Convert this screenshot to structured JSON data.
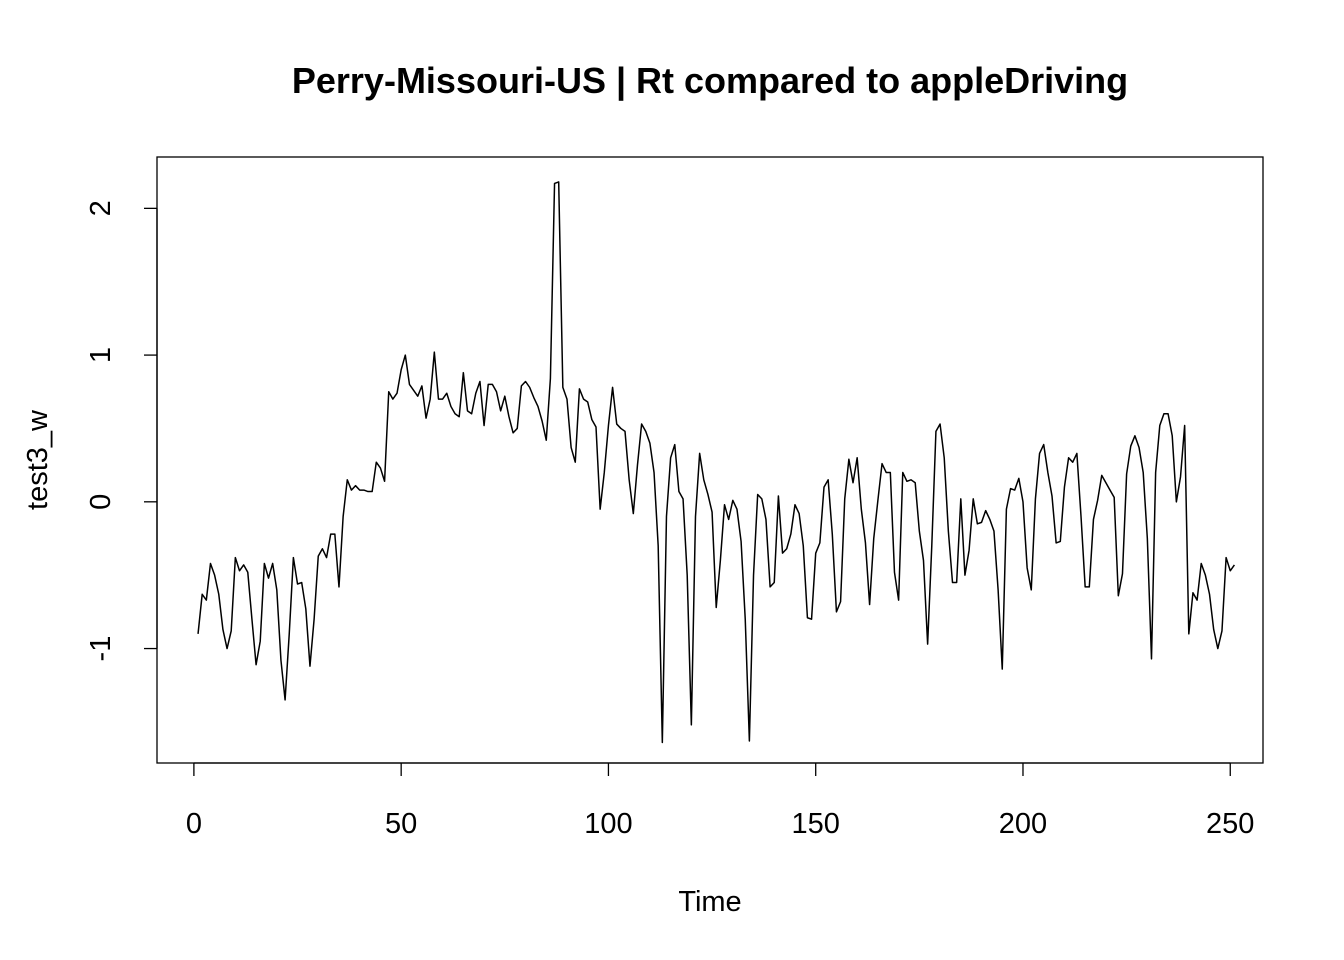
{
  "chart_data": {
    "type": "line",
    "title": "Perry-Missouri-US | Rt compared to appleDriving",
    "xlabel": "Time",
    "ylabel": "test3_w",
    "xlim": [
      -8.9,
      257.9
    ],
    "ylim": [
      -1.78,
      2.35
    ],
    "x_ticks": [
      0,
      50,
      100,
      150,
      200,
      250
    ],
    "y_ticks": [
      -1,
      0,
      1,
      2
    ],
    "x_tick_labels": [
      "0",
      "50",
      "100",
      "150",
      "200",
      "250"
    ],
    "y_tick_labels": [
      "-1",
      "0",
      "1",
      "2"
    ],
    "x_start": 1,
    "x_step": 1,
    "grid": false,
    "legend": "none",
    "line_color": "#000000",
    "series": [
      {
        "values": [
          -0.9,
          -0.63,
          -0.67,
          -0.42,
          -0.5,
          -0.63,
          -0.87,
          -1.0,
          -0.88,
          -0.38,
          -0.47,
          -0.43,
          -0.48,
          -0.8,
          -1.11,
          -0.95,
          -0.42,
          -0.52,
          -0.42,
          -0.6,
          -1.08,
          -1.35,
          -0.9,
          -0.38,
          -0.56,
          -0.55,
          -0.73,
          -1.12,
          -0.8,
          -0.37,
          -0.32,
          -0.38,
          -0.22,
          -0.22,
          -0.58,
          -0.1,
          0.15,
          0.08,
          0.11,
          0.08,
          0.08,
          0.07,
          0.07,
          0.27,
          0.23,
          0.14,
          0.75,
          0.7,
          0.74,
          0.9,
          1.0,
          0.8,
          0.76,
          0.72,
          0.79,
          0.57,
          0.7,
          1.02,
          0.7,
          0.7,
          0.74,
          0.65,
          0.6,
          0.58,
          0.88,
          0.62,
          0.6,
          0.74,
          0.82,
          0.52,
          0.8,
          0.8,
          0.75,
          0.62,
          0.72,
          0.58,
          0.47,
          0.5,
          0.79,
          0.82,
          0.78,
          0.71,
          0.65,
          0.55,
          0.42,
          0.84,
          2.17,
          2.18,
          0.78,
          0.7,
          0.37,
          0.27,
          0.77,
          0.7,
          0.68,
          0.56,
          0.51,
          -0.05,
          0.2,
          0.52,
          0.78,
          0.53,
          0.5,
          0.48,
          0.15,
          -0.08,
          0.25,
          0.53,
          0.48,
          0.4,
          0.2,
          -0.3,
          -1.64,
          -0.1,
          0.3,
          0.39,
          0.07,
          0.02,
          -0.5,
          -1.52,
          -0.1,
          0.33,
          0.15,
          0.05,
          -0.07,
          -0.72,
          -0.4,
          -0.02,
          -0.12,
          0.01,
          -0.05,
          -0.27,
          -0.8,
          -1.63,
          -0.5,
          0.05,
          0.02,
          -0.12,
          -0.58,
          -0.55,
          0.04,
          -0.35,
          -0.32,
          -0.22,
          -0.02,
          -0.08,
          -0.3,
          -0.79,
          -0.8,
          -0.35,
          -0.28,
          0.1,
          0.15,
          -0.22,
          -0.75,
          -0.68,
          0.02,
          0.29,
          0.13,
          0.3,
          -0.05,
          -0.28,
          -0.7,
          -0.25,
          0.01,
          0.26,
          0.2,
          0.2,
          -0.48,
          -0.67,
          0.2,
          0.14,
          0.15,
          0.13,
          -0.2,
          -0.4,
          -0.97,
          -0.3,
          0.48,
          0.53,
          0.3,
          -0.2,
          -0.55,
          -0.55,
          0.02,
          -0.5,
          -0.33,
          0.02,
          -0.15,
          -0.14,
          -0.06,
          -0.12,
          -0.2,
          -0.6,
          -1.14,
          -0.05,
          0.09,
          0.08,
          0.16,
          0.0,
          -0.45,
          -0.6,
          0.02,
          0.33,
          0.39,
          0.2,
          0.04,
          -0.28,
          -0.27,
          0.1,
          0.3,
          0.27,
          0.33,
          -0.1,
          -0.58,
          -0.58,
          -0.12,
          0.01,
          0.18,
          0.13,
          0.08,
          0.03,
          -0.64,
          -0.49,
          0.19,
          0.38,
          0.45,
          0.37,
          0.2,
          -0.25,
          -1.07,
          0.2,
          0.52,
          0.6,
          0.6,
          0.45,
          0.0,
          0.17,
          0.52,
          -0.9,
          -0.62,
          -0.67,
          -0.42,
          -0.5,
          -0.63,
          -0.87,
          -1.0,
          -0.88,
          -0.38,
          -0.47,
          -0.43
        ]
      }
    ]
  }
}
